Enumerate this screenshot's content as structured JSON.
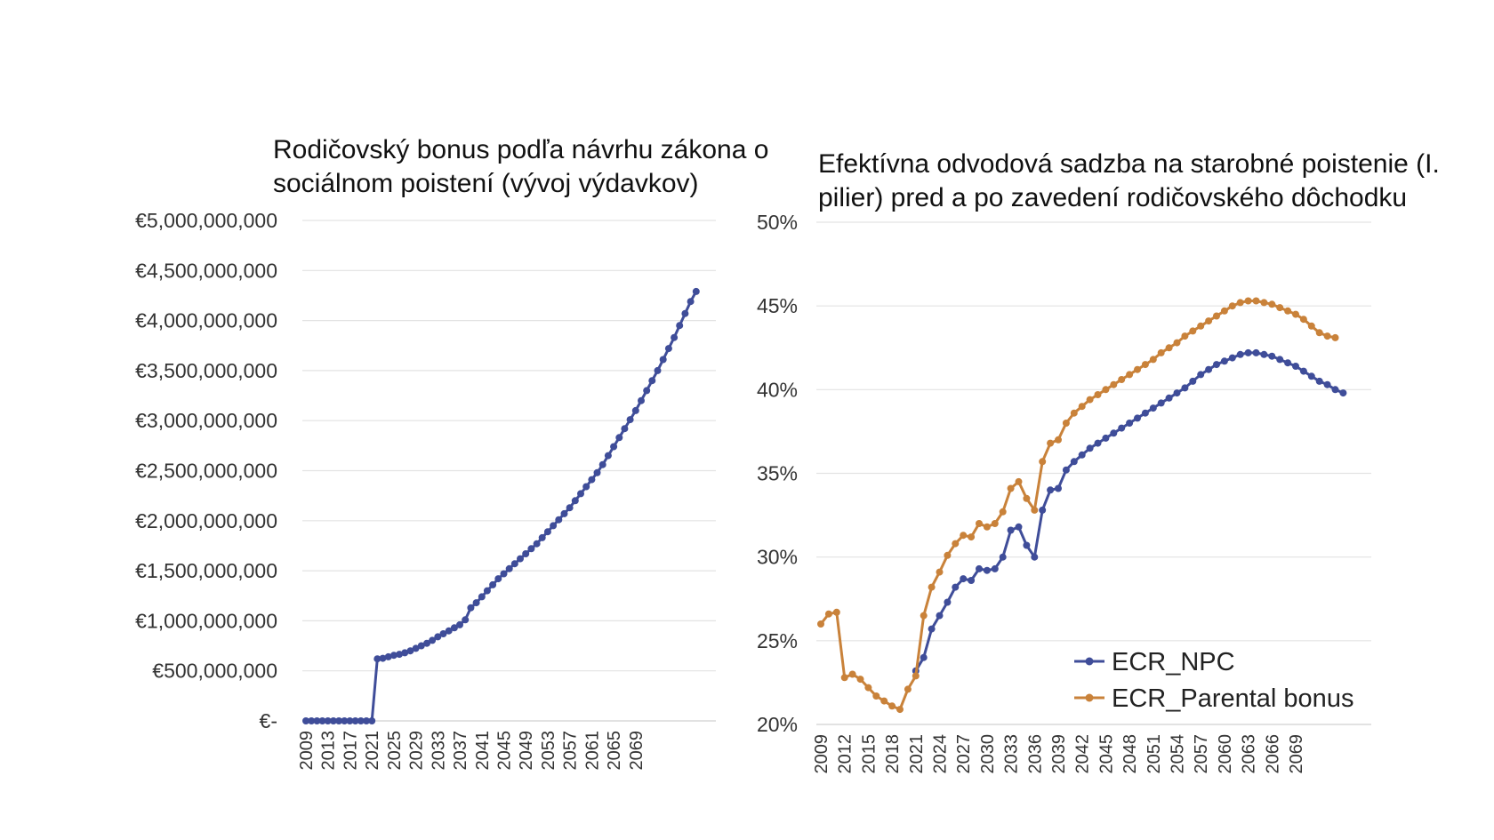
{
  "chart_data": [
    {
      "type": "line",
      "title": "Rodičovský bonus podľa návrhu zákona o sociálnom poistení (vývoj výdavkov)",
      "ylim": [
        0,
        5000000000
      ],
      "ytick_labels": [
        "€-",
        "€500,000,000",
        "€1,000,000,000",
        "€1,500,000,000",
        "€2,000,000,000",
        "€2,500,000,000",
        "€3,000,000,000",
        "€3,500,000,000",
        "€4,000,000,000",
        "€4,500,000,000",
        "€5,000,000,000"
      ],
      "xtick_labels": [
        "2009",
        "2013",
        "2017",
        "2021",
        "2025",
        "2029",
        "2033",
        "2037",
        "2041",
        "2045",
        "2049",
        "2053",
        "2057",
        "2061",
        "2065",
        "2069"
      ],
      "x_start": 2009,
      "grid": true,
      "colors": {
        "line": "#3f4d99"
      },
      "series": [
        {
          "values": [
            0,
            0,
            0,
            0,
            0,
            0,
            0,
            0,
            0,
            0,
            0,
            0,
            0,
            620000000,
            625000000,
            640000000,
            655000000,
            665000000,
            680000000,
            700000000,
            725000000,
            750000000,
            775000000,
            805000000,
            840000000,
            870000000,
            900000000,
            930000000,
            960000000,
            1010000000,
            1130000000,
            1180000000,
            1240000000,
            1300000000,
            1360000000,
            1420000000,
            1470000000,
            1520000000,
            1570000000,
            1620000000,
            1670000000,
            1720000000,
            1770000000,
            1830000000,
            1890000000,
            1950000000,
            2010000000,
            2070000000,
            2130000000,
            2200000000,
            2270000000,
            2340000000,
            2410000000,
            2480000000,
            2560000000,
            2650000000,
            2740000000,
            2830000000,
            2920000000,
            3010000000,
            3100000000,
            3200000000,
            3300000000,
            3400000000,
            3500000000,
            3610000000,
            3720000000,
            3830000000,
            3950000000,
            4070000000,
            4190000000,
            4290000000
          ]
        }
      ]
    },
    {
      "type": "line",
      "title": "Efektívna odvodová sadzba na starobné poistenie (I. pilier) pred a po zavedení rodičovského dôchodku",
      "ylim": [
        20,
        50
      ],
      "ytick_labels": [
        "20%",
        "25%",
        "30%",
        "35%",
        "40%",
        "45%",
        "50%"
      ],
      "xtick_labels": [
        "2009",
        "2012",
        "2015",
        "2018",
        "2021",
        "2024",
        "2027",
        "2030",
        "2033",
        "2036",
        "2039",
        "2042",
        "2045",
        "2048",
        "2051",
        "2054",
        "2057",
        "2060",
        "2063",
        "2066",
        "2069"
      ],
      "x_start": 2009,
      "grid": true,
      "legend_position": "bottom-right",
      "series": [
        {
          "name": "ECR_NPC",
          "color": "#3f4d99",
          "start": 2021,
          "values": [
            23.2,
            24.0,
            25.7,
            26.5,
            27.3,
            28.2,
            28.7,
            28.6,
            29.3,
            29.2,
            29.3,
            30.0,
            31.6,
            31.8,
            30.7,
            30.0,
            32.8,
            34.0,
            34.1,
            35.2,
            35.7,
            36.1,
            36.5,
            36.8,
            37.1,
            37.4,
            37.7,
            38.0,
            38.3,
            38.6,
            38.9,
            39.2,
            39.5,
            39.8,
            40.1,
            40.5,
            40.9,
            41.2,
            41.5,
            41.7,
            41.9,
            42.1,
            42.2,
            42.2,
            42.1,
            42.0,
            41.8,
            41.6,
            41.4,
            41.1,
            40.8,
            40.5,
            40.3,
            40.0,
            39.8
          ]
        },
        {
          "name": "ECR_Parental bonus",
          "color": "#c9823a",
          "start": 2009,
          "values": [
            26.0,
            26.6,
            26.7,
            22.8,
            23.0,
            22.7,
            22.2,
            21.7,
            21.4,
            21.1,
            20.9,
            22.1,
            22.9,
            26.5,
            28.2,
            29.1,
            30.1,
            30.8,
            31.3,
            31.2,
            32.0,
            31.8,
            32.0,
            32.7,
            34.1,
            34.5,
            33.5,
            32.8,
            35.7,
            36.8,
            37.0,
            38.0,
            38.6,
            39.0,
            39.4,
            39.7,
            40.0,
            40.3,
            40.6,
            40.9,
            41.2,
            41.5,
            41.8,
            42.2,
            42.5,
            42.8,
            43.2,
            43.5,
            43.8,
            44.1,
            44.4,
            44.7,
            45.0,
            45.2,
            45.3,
            45.3,
            45.2,
            45.1,
            44.9,
            44.7,
            44.5,
            44.2,
            43.8,
            43.4,
            43.2,
            43.1
          ]
        }
      ]
    }
  ]
}
